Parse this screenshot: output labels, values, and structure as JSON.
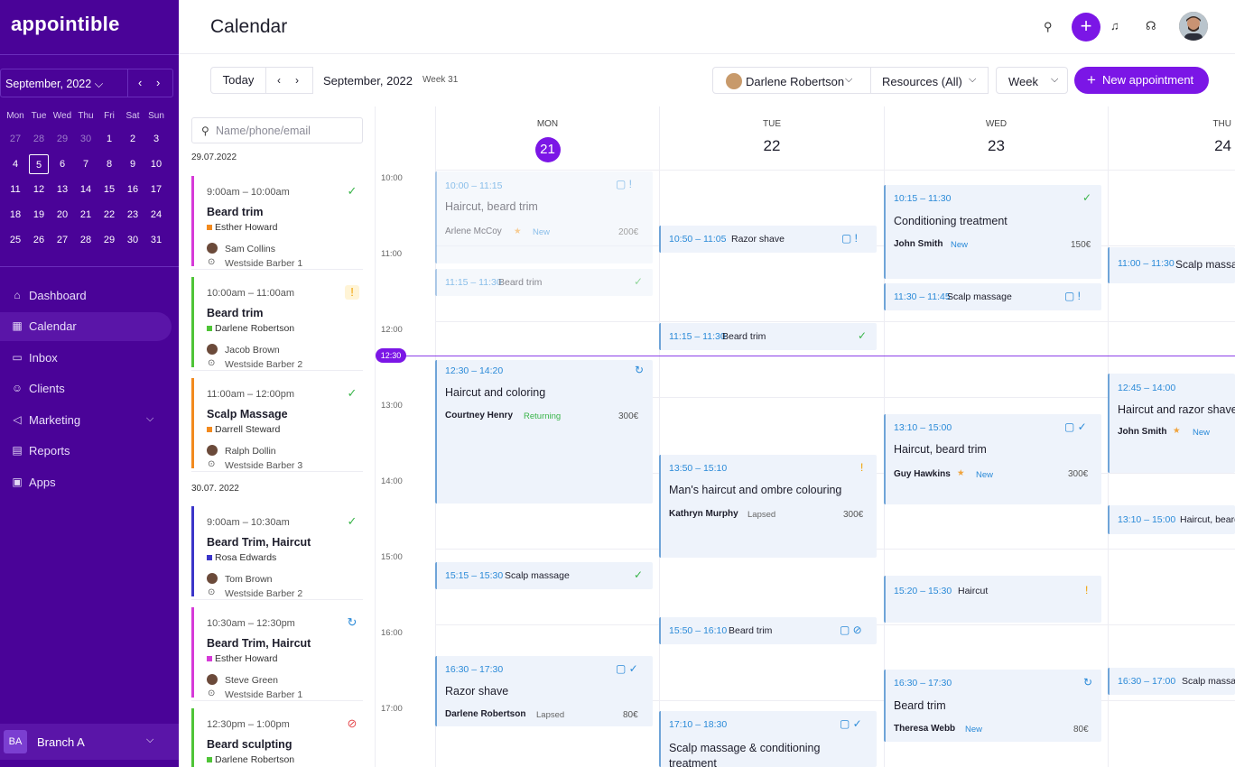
{
  "app": {
    "logo": "appointible"
  },
  "sidebar": {
    "month": "September, 2022",
    "month_chev": "⌵",
    "prev": "‹",
    "next": "›",
    "dow": [
      "Mon",
      "Tue",
      "Wed",
      "Thu",
      "Fri",
      "Sat",
      "Sun"
    ],
    "weeks": [
      [
        "27",
        "28",
        "29",
        "30",
        "1",
        "2",
        "3"
      ],
      [
        "4",
        "5",
        "6",
        "7",
        "8",
        "9",
        "10"
      ],
      [
        "11",
        "12",
        "13",
        "14",
        "15",
        "16",
        "17"
      ],
      [
        "18",
        "19",
        "20",
        "21",
        "22",
        "23",
        "24"
      ],
      [
        "25",
        "26",
        "27",
        "28",
        "29",
        "30",
        "31"
      ]
    ],
    "nav": [
      {
        "label": "Dashboard",
        "icon": "home-icon",
        "glyph": "⌂"
      },
      {
        "label": "Calendar",
        "icon": "calendar-icon",
        "glyph": "▦"
      },
      {
        "label": "Inbox",
        "icon": "message-icon",
        "glyph": "▭"
      },
      {
        "label": "Clients",
        "icon": "users-icon",
        "glyph": "☺"
      },
      {
        "label": "Marketing",
        "icon": "megaphone-icon",
        "glyph": "◁"
      },
      {
        "label": "Reports",
        "icon": "clipboard-icon",
        "glyph": "▤"
      },
      {
        "label": "Apps",
        "icon": "apps-icon",
        "glyph": "▣"
      }
    ],
    "marketing_chev": "⌵",
    "branch": {
      "badge": "BA",
      "name": "Branch A",
      "chev": "⌵"
    }
  },
  "topbar": {
    "title": "Calendar",
    "search": "⚲",
    "add": "+",
    "bell": "♫",
    "help": "☊"
  },
  "toolbar": {
    "today": "Today",
    "prev": "‹",
    "next": "›",
    "month": "September, 2022",
    "week": "Week 31",
    "staff": "Darlene Robertson",
    "chev": "⌵",
    "resources": "Resources (All)",
    "view": "Week",
    "new_plus": "+",
    "new_label": "New appointment"
  },
  "list": {
    "search_placeholder": "Name/phone/email",
    "search_icon": "⚲",
    "dates": [
      "29.07.2022",
      "30.07. 2022"
    ],
    "cards": [
      {
        "time": "9:00am – 10:00am",
        "title": "Beard trim",
        "staff": "Esther Howard",
        "client": "Sam Collins",
        "location": "Westside Barber 1",
        "status": "✓",
        "color": "#d63ad8",
        "sq": "#f28a1e"
      },
      {
        "time": "10:00am – 11:00am",
        "title": "Beard trim",
        "staff": "Darlene Robertson",
        "client": "Jacob Brown",
        "location": "Westside Barber 2",
        "status": "!",
        "color": "#4fc437",
        "sq": "#4fc437"
      },
      {
        "time": "11:00am – 12:00pm",
        "title": "Scalp Massage",
        "staff": "Darrell Steward",
        "client": "Ralph Dollin",
        "location": "Westside Barber 3",
        "status": "✓",
        "color": "#f28a1e",
        "sq": "#f28a1e"
      },
      {
        "time": "9:00am – 10:30am",
        "title": "Beard Trim, Haircut",
        "staff": "Rosa Edwards",
        "client": "Tom Brown",
        "location": "Westside Barber 2",
        "status": "✓",
        "color": "#3b35c9",
        "sq": "#3b35c9"
      },
      {
        "time": "10:30am – 12:30pm",
        "title": "Beard Trim, Haircut",
        "staff": "Esther Howard",
        "client": "Steve Green",
        "location": "Westside Barber 1",
        "status": "↻",
        "color": "#d63ad8",
        "sq": "#d63ad8"
      },
      {
        "time": "12:30pm – 1:00pm",
        "title": "Beard sculpting",
        "staff": "Darlene Robertson",
        "client": "",
        "location": "",
        "status": "⊘",
        "color": "#4fc437",
        "sq": "#4fc437"
      }
    ]
  },
  "calendar": {
    "days": [
      {
        "name": "MON",
        "num": "21"
      },
      {
        "name": "TUE",
        "num": "22"
      },
      {
        "name": "WED",
        "num": "23"
      },
      {
        "name": "THU",
        "num": "24"
      }
    ],
    "hours": [
      "10:00",
      "11:00",
      "12:00",
      "13:00",
      "14:00",
      "15:00",
      "16:00",
      "17:00"
    ],
    "now": "12:30",
    "events": {
      "mon1": {
        "time": "10:00 – 11:15",
        "title": "Haircut, beard trim",
        "client": "Arlene McCoy",
        "tag": "New",
        "price": "200€",
        "icons": "▢ !"
      },
      "mon2": {
        "time": "11:15 – 11:30",
        "name": "Beard trim",
        "icons": "✓"
      },
      "mon3": {
        "time": "12:30 – 14:20",
        "title": "Haircut and coloring",
        "client": "Courtney Henry",
        "tag": "Returning",
        "price": "300€",
        "icons": "↻"
      },
      "mon4": {
        "time": "15:15 – 15:30",
        "name": "Scalp massage",
        "icons": "✓"
      },
      "mon5": {
        "time": "16:30 – 17:30",
        "title": "Razor shave",
        "client": "Darlene Robertson",
        "tag": "Lapsed",
        "price": "80€",
        "icons": "▢ ✓"
      },
      "tue1": {
        "time": "10:50 – 11:05",
        "name": "Razor shave",
        "icons": "▢ !"
      },
      "tue2": {
        "time": "11:15 – 11:30",
        "name": "Beard trim",
        "icons": "✓"
      },
      "tue3": {
        "time": "13:50 – 15:10",
        "title": "Man's haircut and ombre colouring",
        "client": "Kathryn Murphy",
        "tag": "Lapsed",
        "price": "300€",
        "icons": "!"
      },
      "tue4": {
        "time": "15:50 – 16:10",
        "name": "Beard trim",
        "icons": "▢ ⊘"
      },
      "tue5": {
        "time": "17:10 – 18:30",
        "title": "Scalp massage & conditioning treatment",
        "icons": "▢ ✓"
      },
      "wed1": {
        "time": "10:15 – 11:30",
        "title": "Conditioning treatment",
        "client": "John Smith",
        "tag": "New",
        "price": "150€",
        "icons": "✓"
      },
      "wed2": {
        "time": "11:30 – 11:45",
        "name": "Scalp massage",
        "icons": "▢ !"
      },
      "wed3": {
        "time": "13:10 – 15:00",
        "title": "Haircut, beard trim",
        "client": "Guy Hawkins",
        "tag": "New",
        "price": "300€",
        "icons": "▢ ✓"
      },
      "wed4": {
        "time": "15:20 – 15:30",
        "name": "Haircut",
        "icons": "!"
      },
      "wed5": {
        "time": "16:30 – 17:30",
        "title": "Beard trim",
        "client": "Theresa Webb",
        "tag": "New",
        "price": "80€",
        "icons": "↻"
      },
      "thu1": {
        "time": "11:00 – 11:30",
        "name": "Scalp massage"
      },
      "thu2": {
        "time": "12:45 – 14:00",
        "title": "Haircut and razor shave",
        "client": "John Smith",
        "tag": "New"
      },
      "thu3": {
        "time": "13:10 – 15:00",
        "name": "Haircut, beard trim"
      },
      "thu4": {
        "time": "16:30 – 17:00",
        "name": "Scalp massage"
      }
    },
    "star": "★"
  },
  "colors": {
    "accent": "#7b16e6",
    "sidebar": "#4a0398",
    "ok": "#3ab54a",
    "warn": "#f0a000",
    "link": "#2a8ad8"
  }
}
